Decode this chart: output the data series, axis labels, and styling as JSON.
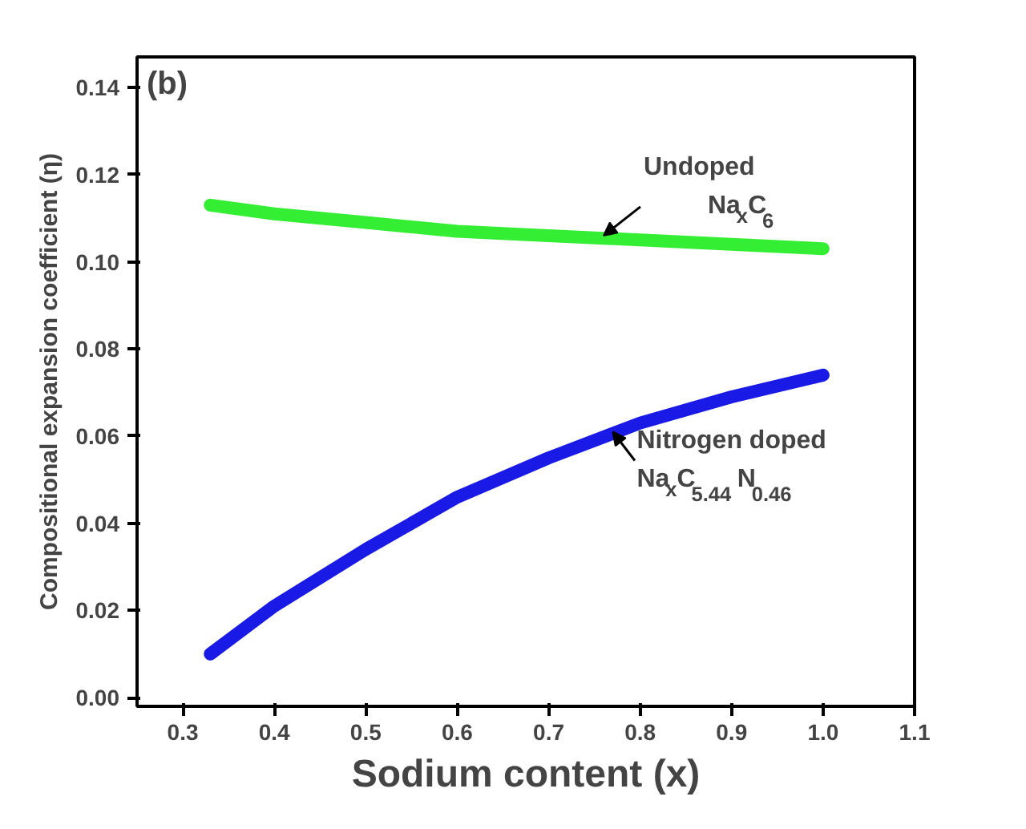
{
  "chart_data": {
    "type": "line",
    "xlabel": "Sodium content (x)",
    "ylabel": "Compositional expansion coefficient (η)",
    "x": [
      0.33,
      0.4,
      0.5,
      0.6,
      0.7,
      0.8,
      0.9,
      1.0
    ],
    "series": [
      {
        "color": "#33ee33",
        "values": [
          0.113,
          0.111,
          0.109,
          0.107,
          0.106,
          0.105,
          0.104,
          0.103
        ]
      },
      {
        "color": "#1a1ae6",
        "values": [
          0.01,
          0.021,
          0.034,
          0.046,
          0.055,
          0.063,
          0.069,
          0.074
        ]
      }
    ],
    "xlim": [
      0.25,
      1.1
    ],
    "xticks": [
      {
        "value": 0.3,
        "label": "0.3"
      },
      {
        "value": 0.4,
        "label": "0.4"
      },
      {
        "value": 0.5,
        "label": "0.5"
      },
      {
        "value": 0.6,
        "label": "0.6"
      },
      {
        "value": 0.7,
        "label": "0.7"
      },
      {
        "value": 0.8,
        "label": "0.8"
      },
      {
        "value": 0.9,
        "label": "0.9"
      },
      {
        "value": 1.0,
        "label": "1.0"
      },
      {
        "value": 1.1,
        "label": "1.1"
      }
    ],
    "ylim": [
      -0.002,
      0.147
    ],
    "yticks": [
      {
        "value": 0,
        "label": "0.00"
      },
      {
        "value": 0.02,
        "label": "0.02"
      },
      {
        "value": 0.04,
        "label": "0.04"
      },
      {
        "value": 0.06,
        "label": "0.06"
      },
      {
        "value": 0.08,
        "label": "0.08"
      },
      {
        "value": 0.1,
        "label": "0.10"
      },
      {
        "value": 0.12,
        "label": "0.12"
      },
      {
        "value": 0.14,
        "label": "0.14"
      }
    ],
    "grid": false,
    "marker": "none",
    "line_style": "solid",
    "annotations": [
      "(b)",
      {
        "text": "Undoped\nNa$_{x}$C$_{6}$",
        "x": 0.76,
        "y": 0.106
      },
      {
        "text": "Nitrogen doped\nNa$_{x}$C$_{5.44}$N$_{0.46}$",
        "x": 0.77,
        "y": 0.061
      }
    ]
  }
}
